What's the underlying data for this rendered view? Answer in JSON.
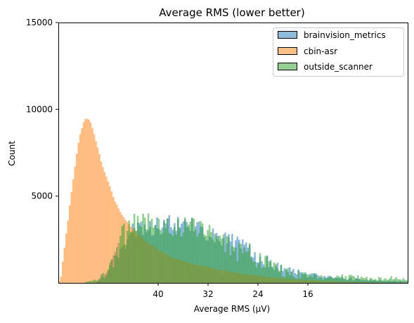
{
  "chart_data": {
    "type": "histogram",
    "title": "Average RMS (lower better)",
    "xlabel": "Average RMS (μV)",
    "ylabel": "Count",
    "x_reversed": true,
    "xlim": [
      56,
      0
    ],
    "ylim": [
      0,
      15000
    ],
    "xticks": [
      {
        "value": 40,
        "label": "40"
      },
      {
        "value": 32,
        "label": "32"
      },
      {
        "value": 24,
        "label": "24"
      },
      {
        "value": 16,
        "label": "16"
      }
    ],
    "yticks": [
      {
        "value": 5000,
        "label": "5000"
      },
      {
        "value": 10000,
        "label": "10000"
      },
      {
        "value": 15000,
        "label": "15000"
      }
    ],
    "bin_width": 0.28,
    "legend_position": "top-right",
    "series": [
      {
        "name": "brainvision_metrics",
        "color": "#1f77b4",
        "opacity": 0.5,
        "points": [
          [
            56,
            0
          ],
          [
            50,
            0
          ],
          [
            48,
            700
          ],
          [
            46,
            2000
          ],
          [
            44,
            3000
          ],
          [
            43,
            3300
          ],
          [
            42,
            3200
          ],
          [
            40,
            3300
          ],
          [
            38,
            3400
          ],
          [
            36,
            3300
          ],
          [
            34,
            3100
          ],
          [
            32,
            2900
          ],
          [
            30,
            2600
          ],
          [
            28,
            2300
          ],
          [
            26,
            1900
          ],
          [
            24,
            1400
          ],
          [
            22,
            1100
          ],
          [
            20,
            850
          ],
          [
            18,
            650
          ],
          [
            16,
            450
          ],
          [
            14,
            380
          ],
          [
            12,
            300
          ],
          [
            10,
            250
          ],
          [
            8,
            200
          ],
          [
            6,
            160
          ],
          [
            4,
            120
          ],
          [
            2,
            100
          ],
          [
            0,
            80
          ]
        ],
        "jitter": 550
      },
      {
        "name": "cbin-asr",
        "color": "#ff7f0e",
        "opacity": 0.5,
        "points": [
          [
            56,
            0
          ],
          [
            55.6,
            300
          ],
          [
            55.2,
            1500
          ],
          [
            54.5,
            3500
          ],
          [
            54,
            5000
          ],
          [
            53.5,
            6300
          ],
          [
            53,
            7600
          ],
          [
            52.5,
            8600
          ],
          [
            52,
            9200
          ],
          [
            51.6,
            9500
          ],
          [
            51,
            9400
          ],
          [
            50.5,
            8900
          ],
          [
            50,
            8200
          ],
          [
            49.5,
            7500
          ],
          [
            49,
            6800
          ],
          [
            48,
            5800
          ],
          [
            47,
            4800
          ],
          [
            46,
            4000
          ],
          [
            45,
            3500
          ],
          [
            44,
            3100
          ],
          [
            43,
            2800
          ],
          [
            42,
            2400
          ],
          [
            40,
            1900
          ],
          [
            38,
            1500
          ],
          [
            36,
            1250
          ],
          [
            34,
            1050
          ],
          [
            32,
            900
          ],
          [
            30,
            750
          ],
          [
            28,
            620
          ],
          [
            26,
            500
          ],
          [
            24,
            420
          ],
          [
            22,
            330
          ],
          [
            20,
            260
          ],
          [
            18,
            200
          ],
          [
            16,
            160
          ],
          [
            14,
            120
          ],
          [
            12,
            90
          ],
          [
            10,
            70
          ],
          [
            8,
            50
          ],
          [
            6,
            35
          ],
          [
            4,
            25
          ],
          [
            2,
            15
          ],
          [
            0,
            10
          ]
        ],
        "jitter": 40
      },
      {
        "name": "outside_scanner",
        "color": "#2ca02c",
        "opacity": 0.5,
        "points": [
          [
            56,
            0
          ],
          [
            52,
            0
          ],
          [
            50,
            150
          ],
          [
            48,
            600
          ],
          [
            47,
            1500
          ],
          [
            46,
            2500
          ],
          [
            44,
            3300
          ],
          [
            43,
            3700
          ],
          [
            42,
            3500
          ],
          [
            40,
            3300
          ],
          [
            38,
            3200
          ],
          [
            36,
            3100
          ],
          [
            34,
            3000
          ],
          [
            32,
            2800
          ],
          [
            30,
            2400
          ],
          [
            28,
            2000
          ],
          [
            26,
            1700
          ],
          [
            24,
            1300
          ],
          [
            22,
            1000
          ],
          [
            20,
            700
          ],
          [
            18,
            500
          ],
          [
            16,
            400
          ],
          [
            14,
            350
          ],
          [
            12,
            400
          ],
          [
            10,
            350
          ],
          [
            8,
            300
          ],
          [
            6,
            250
          ],
          [
            4,
            280
          ],
          [
            2,
            250
          ],
          [
            0,
            200
          ]
        ],
        "jitter": 750
      }
    ]
  }
}
